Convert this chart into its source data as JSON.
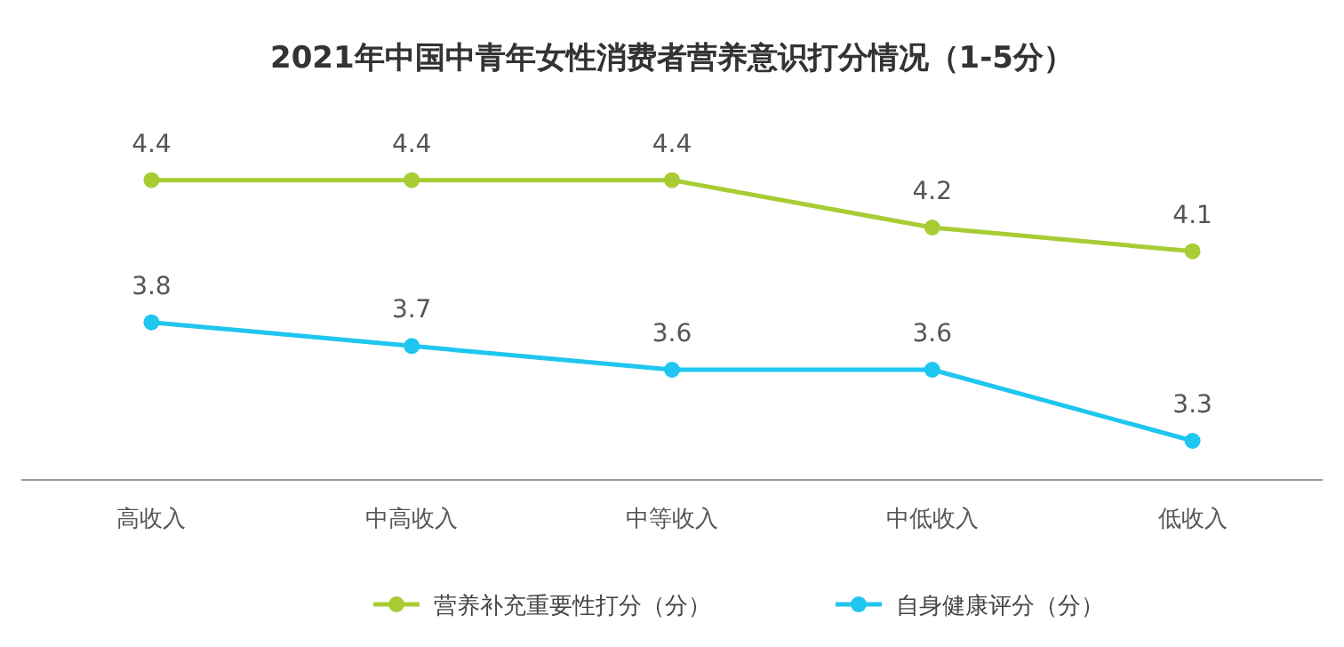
{
  "chart_data": {
    "type": "line",
    "title": "2021年中国中青年女性消费者营养意识打分情况（1-5分）",
    "categories": [
      "高收入",
      "中高收入",
      "中等收入",
      "中低收入",
      "低收入"
    ],
    "series": [
      {
        "name": "营养补充重要性打分（分）",
        "color": "#a8cc34",
        "values": [
          4.4,
          4.4,
          4.4,
          4.2,
          4.1
        ]
      },
      {
        "name": "自身健康评分（分）",
        "color": "#1fc6ef",
        "values": [
          3.8,
          3.7,
          3.6,
          3.6,
          3.3
        ]
      }
    ],
    "data_labels": true,
    "marker": "circle",
    "line_style": "solid",
    "legend": "bottom"
  }
}
